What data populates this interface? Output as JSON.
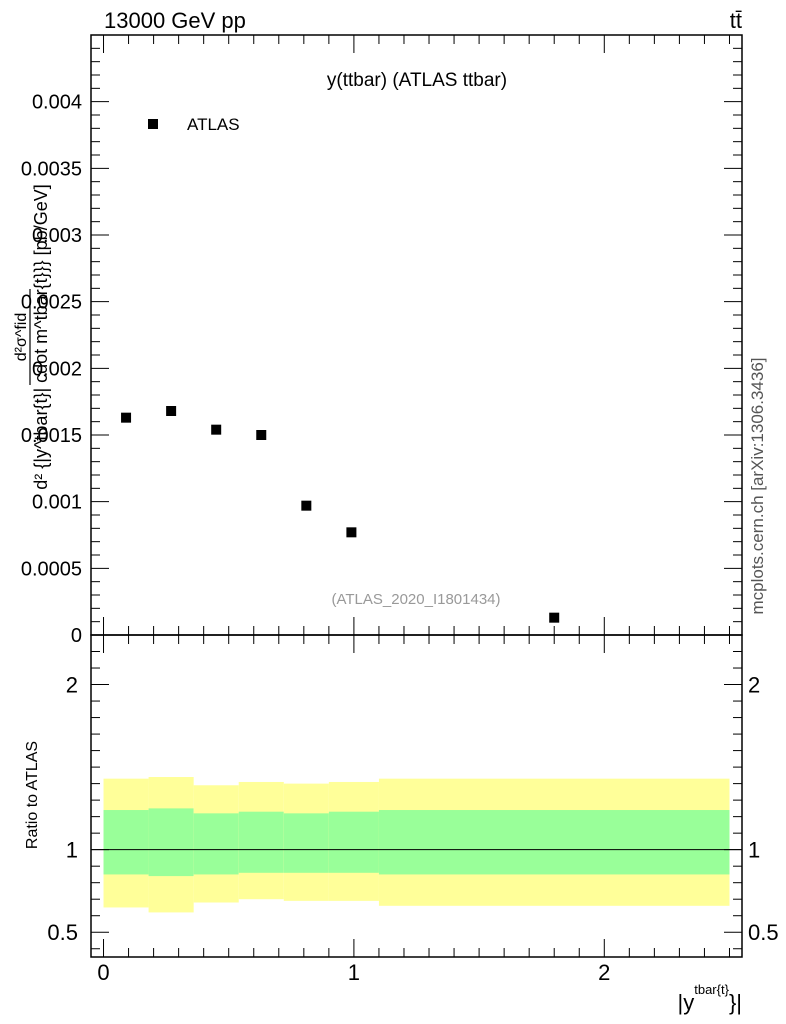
{
  "header": {
    "energy_label": "13000 GeV pp",
    "process_label": "tt̄",
    "side_credit": "mcplots.cern.ch [arXiv:1306.3436]"
  },
  "main_plot": {
    "title": "y(ttbar) (ATLAS ttbar)",
    "legend_label": "ATLAS",
    "watermark": "(ATLAS_2020_I1801434)",
    "ylabel_num": "d²σ^fid",
    "ylabel_den": "d² {|y^tbar{t}| cdot m^tbar{t}}} [pb/GeV]"
  },
  "ratio_plot": {
    "ylabel": "Ratio to ATLAS"
  },
  "x_axis": {
    "label_base": "|y",
    "label_sup": "tbar{t}",
    "label_tail": "}|"
  },
  "colors": {
    "marker": "#000000",
    "band_inner": "#99ff99",
    "band_outer": "#ffff99"
  },
  "chart_data": [
    {
      "type": "scatter",
      "title": "y(ttbar) (ATLAS ttbar)",
      "xlabel": "|y^tbar{t}}|",
      "ylabel": "d²σ^fid / d² {|y^tbar{t}| cdot m^tbar{t}}} [pb/GeV]",
      "xlim": [
        -0.05,
        2.55
      ],
      "ylim": [
        0,
        0.0045
      ],
      "legend_position": "top-left",
      "grid": false,
      "yticks": [
        "0",
        "0.0005",
        "0.001",
        "0.0015",
        "0.002",
        "0.0025",
        "0.003",
        "0.0035",
        "0.004"
      ],
      "series": [
        {
          "name": "ATLAS",
          "x": [
            0.09,
            0.27,
            0.45,
            0.63,
            0.81,
            0.99,
            1.8
          ],
          "y": [
            0.00163,
            0.00168,
            0.00154,
            0.0015,
            0.00097,
            0.00077,
            0.00013
          ]
        }
      ]
    },
    {
      "type": "area",
      "ylabel": "Ratio to ATLAS",
      "xlim": [
        -0.05,
        2.55
      ],
      "ylim": [
        0.35,
        2.3
      ],
      "grid": false,
      "yticks": [
        "0.5",
        "1",
        "2"
      ],
      "xticks": [
        "0",
        "1",
        "2"
      ],
      "bins": [
        {
          "xlo": 0.0,
          "xhi": 0.18,
          "inner": [
            0.85,
            1.24
          ],
          "outer": [
            0.65,
            1.43
          ]
        },
        {
          "xlo": 0.18,
          "xhi": 0.36,
          "inner": [
            0.84,
            1.25
          ],
          "outer": [
            0.62,
            1.44
          ]
        },
        {
          "xlo": 0.36,
          "xhi": 0.54,
          "inner": [
            0.85,
            1.22
          ],
          "outer": [
            0.68,
            1.39
          ]
        },
        {
          "xlo": 0.54,
          "xhi": 0.72,
          "inner": [
            0.86,
            1.23
          ],
          "outer": [
            0.7,
            1.41
          ]
        },
        {
          "xlo": 0.72,
          "xhi": 0.9,
          "inner": [
            0.86,
            1.22
          ],
          "outer": [
            0.69,
            1.4
          ]
        },
        {
          "xlo": 0.9,
          "xhi": 1.1,
          "inner": [
            0.86,
            1.23
          ],
          "outer": [
            0.69,
            1.41
          ]
        },
        {
          "xlo": 1.1,
          "xhi": 2.5,
          "inner": [
            0.85,
            1.24
          ],
          "outer": [
            0.66,
            1.43
          ]
        }
      ],
      "reference_line": 1
    }
  ]
}
